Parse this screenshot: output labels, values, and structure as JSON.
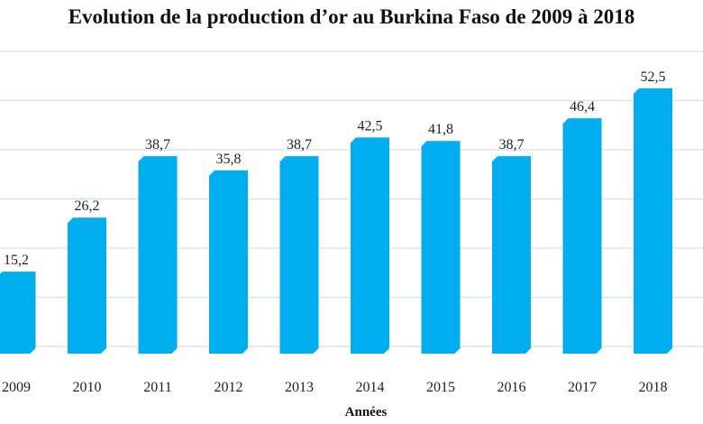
{
  "chart_data": {
    "type": "bar",
    "title": "Evolution de la production d’or au Burkina Faso de 2009 à 2018",
    "xlabel": "Années",
    "ylabel": "",
    "categories": [
      "2009",
      "2010",
      "2011",
      "2012",
      "2013",
      "2014",
      "2015",
      "2016",
      "2017",
      "2018"
    ],
    "values": [
      15.2,
      26.2,
      38.7,
      35.8,
      38.7,
      42.5,
      41.8,
      38.7,
      46.4,
      52.5
    ],
    "value_labels": [
      "15,2",
      "26,2",
      "38,7",
      "35,8",
      "38,7",
      "42,5",
      "41,8",
      "38,7",
      "46,4",
      "52,5"
    ],
    "ylim": [
      0,
      60
    ],
    "grid": true,
    "bar_color": "#00aeef",
    "grid_color": "#d9dde3"
  }
}
